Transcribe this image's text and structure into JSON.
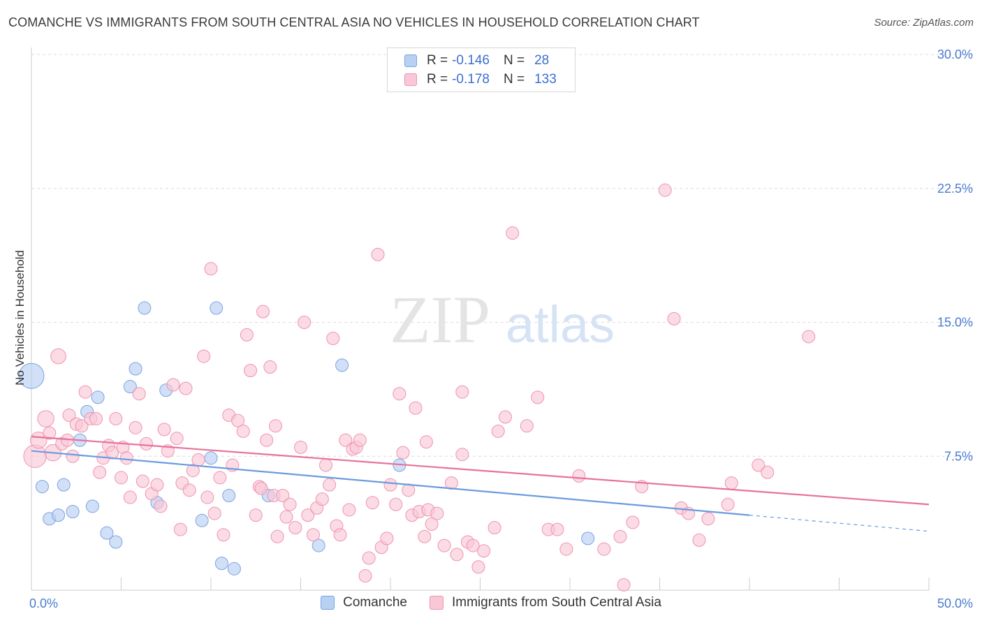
{
  "title": "COMANCHE VS IMMIGRANTS FROM SOUTH CENTRAL ASIA NO VEHICLES IN HOUSEHOLD CORRELATION CHART",
  "source": "Source: ZipAtlas.com",
  "watermark": {
    "zip": "ZIP",
    "atlas": "atlas"
  },
  "legend": {
    "r_label": "R =",
    "n_label": "N =",
    "rows": [
      {
        "r": "-0.146",
        "n": "28",
        "fill": "#b8d0f2",
        "stroke": "#7aa3e0"
      },
      {
        "r": "-0.178",
        "n": "133",
        "fill": "#f9c7d6",
        "stroke": "#ef93b2"
      }
    ]
  },
  "bottom_legend": [
    "Comanche",
    "Immigrants from South Central Asia"
  ],
  "chart_data": {
    "type": "scatter",
    "title": "COMANCHE VS IMMIGRANTS FROM SOUTH CENTRAL ASIA NO VEHICLES IN HOUSEHOLD CORRELATION CHART",
    "xlabel": "",
    "ylabel": "No Vehicles in Household",
    "xlim": [
      0,
      50
    ],
    "ylim": [
      0,
      30
    ],
    "x_tick_labels": [
      "0.0%",
      "50.0%"
    ],
    "y_tick_labels": [
      "7.5%",
      "15.0%",
      "22.5%",
      "30.0%"
    ],
    "y_ticks": [
      7.5,
      15.0,
      22.5,
      30.0
    ],
    "grid": true,
    "legend_position": "top-center",
    "series": [
      {
        "name": "Comanche",
        "color": "#6a9be0",
        "fill": "#b8d0f2",
        "trend": {
          "x0": 0,
          "y0": 7.8,
          "x1": 40,
          "y1": 4.2,
          "dash_to": 50,
          "dash_y": 3.3
        },
        "points": [
          [
            0.0,
            12.0,
            2.0
          ],
          [
            0.6,
            5.8,
            1
          ],
          [
            1.0,
            4.0,
            1
          ],
          [
            1.5,
            4.2,
            1
          ],
          [
            1.8,
            5.9,
            1
          ],
          [
            2.3,
            4.4,
            1
          ],
          [
            2.7,
            8.4,
            1
          ],
          [
            3.1,
            10.0,
            1
          ],
          [
            3.4,
            4.7,
            1
          ],
          [
            3.7,
            10.8,
            1
          ],
          [
            4.2,
            3.2,
            1
          ],
          [
            4.7,
            2.7,
            1
          ],
          [
            5.5,
            11.4,
            1
          ],
          [
            5.8,
            12.4,
            1
          ],
          [
            6.3,
            15.8,
            1
          ],
          [
            7.0,
            4.9,
            1
          ],
          [
            7.5,
            11.2,
            1
          ],
          [
            9.5,
            3.9,
            1
          ],
          [
            10.0,
            7.4,
            1
          ],
          [
            10.3,
            15.8,
            1
          ],
          [
            10.6,
            1.5,
            1
          ],
          [
            11.0,
            5.3,
            1
          ],
          [
            11.3,
            1.2,
            1
          ],
          [
            13.2,
            5.3,
            1
          ],
          [
            16.0,
            2.5,
            1
          ],
          [
            17.3,
            12.6,
            1
          ],
          [
            20.5,
            7.0,
            1
          ],
          [
            31.0,
            2.9,
            1
          ]
        ]
      },
      {
        "name": "Immigrants from South Central Asia",
        "color": "#e8729b",
        "fill": "#f9c7d6",
        "trend": {
          "x0": 0,
          "y0": 8.6,
          "x1": 50,
          "y1": 4.8
        },
        "points": [
          [
            0.2,
            7.5,
            1.8
          ],
          [
            0.4,
            8.4,
            1.3
          ],
          [
            0.8,
            9.6,
            1.3
          ],
          [
            1.0,
            8.8,
            1
          ],
          [
            1.2,
            7.7,
            1.3
          ],
          [
            1.5,
            13.1,
            1.2
          ],
          [
            1.7,
            8.2,
            1
          ],
          [
            2.0,
            8.4,
            1
          ],
          [
            2.1,
            9.8,
            1
          ],
          [
            2.3,
            7.5,
            1
          ],
          [
            2.5,
            9.3,
            1
          ],
          [
            2.8,
            9.2,
            1
          ],
          [
            3.0,
            11.1,
            1
          ],
          [
            3.3,
            9.6,
            1
          ],
          [
            3.6,
            9.6,
            1
          ],
          [
            3.8,
            6.6,
            1
          ],
          [
            4.0,
            7.4,
            1
          ],
          [
            4.3,
            8.1,
            1
          ],
          [
            4.5,
            7.7,
            1
          ],
          [
            4.7,
            9.6,
            1
          ],
          [
            5.0,
            6.3,
            1
          ],
          [
            5.1,
            8.0,
            1
          ],
          [
            5.3,
            7.4,
            1
          ],
          [
            5.5,
            5.2,
            1
          ],
          [
            5.8,
            9.1,
            1
          ],
          [
            6.0,
            11.0,
            1
          ],
          [
            6.2,
            6.1,
            1
          ],
          [
            6.4,
            8.2,
            1
          ],
          [
            6.7,
            5.4,
            1
          ],
          [
            7.0,
            5.9,
            1
          ],
          [
            7.2,
            4.7,
            1
          ],
          [
            7.4,
            9.0,
            1
          ],
          [
            7.6,
            7.8,
            1
          ],
          [
            7.9,
            11.5,
            1
          ],
          [
            8.1,
            8.5,
            1
          ],
          [
            8.4,
            6.0,
            1
          ],
          [
            8.6,
            11.3,
            1
          ],
          [
            8.8,
            5.6,
            1
          ],
          [
            9.0,
            6.7,
            1
          ],
          [
            9.3,
            7.3,
            1
          ],
          [
            9.6,
            13.1,
            1
          ],
          [
            9.8,
            5.2,
            1
          ],
          [
            10.0,
            18.0,
            1
          ],
          [
            10.2,
            4.3,
            1
          ],
          [
            10.5,
            6.3,
            1
          ],
          [
            10.7,
            3.1,
            1
          ],
          [
            11.0,
            9.8,
            1
          ],
          [
            11.2,
            7.0,
            1
          ],
          [
            11.5,
            9.5,
            1
          ],
          [
            11.8,
            8.9,
            1
          ],
          [
            12.0,
            14.3,
            1
          ],
          [
            12.2,
            12.3,
            1
          ],
          [
            12.5,
            4.2,
            1
          ],
          [
            12.7,
            5.8,
            1
          ],
          [
            12.9,
            15.6,
            1
          ],
          [
            13.1,
            8.4,
            1
          ],
          [
            13.3,
            12.5,
            1
          ],
          [
            13.5,
            5.3,
            1
          ],
          [
            13.7,
            3.0,
            1
          ],
          [
            14.0,
            5.3,
            1
          ],
          [
            14.2,
            4.1,
            1
          ],
          [
            14.4,
            4.8,
            1
          ],
          [
            14.7,
            3.5,
            1
          ],
          [
            15.0,
            8.0,
            1
          ],
          [
            15.2,
            15.0,
            1
          ],
          [
            15.4,
            4.2,
            1
          ],
          [
            15.7,
            3.1,
            1
          ],
          [
            15.9,
            4.6,
            1
          ],
          [
            16.2,
            5.1,
            1
          ],
          [
            16.4,
            7.0,
            1
          ],
          [
            16.6,
            5.9,
            1
          ],
          [
            16.8,
            14.1,
            1
          ],
          [
            17.0,
            3.6,
            1
          ],
          [
            17.2,
            3.1,
            1
          ],
          [
            17.5,
            8.4,
            1
          ],
          [
            17.7,
            4.5,
            1
          ],
          [
            17.9,
            7.9,
            1
          ],
          [
            18.1,
            8.0,
            1
          ],
          [
            18.3,
            8.4,
            1
          ],
          [
            18.6,
            0.8,
            1
          ],
          [
            18.8,
            1.8,
            1
          ],
          [
            19.0,
            4.9,
            1
          ],
          [
            19.3,
            18.8,
            1
          ],
          [
            19.5,
            2.4,
            1
          ],
          [
            19.8,
            2.9,
            1
          ],
          [
            20.0,
            5.9,
            1
          ],
          [
            20.3,
            4.8,
            1
          ],
          [
            20.5,
            11.0,
            1
          ],
          [
            20.7,
            7.7,
            1
          ],
          [
            21.0,
            5.6,
            1
          ],
          [
            21.2,
            4.2,
            1
          ],
          [
            21.4,
            10.2,
            1
          ],
          [
            21.6,
            4.4,
            1
          ],
          [
            21.9,
            3.0,
            1
          ],
          [
            22.1,
            4.5,
            1
          ],
          [
            22.3,
            3.7,
            1
          ],
          [
            22.6,
            4.3,
            1
          ],
          [
            23.0,
            2.5,
            1
          ],
          [
            23.4,
            6.0,
            1
          ],
          [
            23.7,
            2.0,
            1
          ],
          [
            24.0,
            11.1,
            1
          ],
          [
            24.3,
            2.7,
            1
          ],
          [
            24.6,
            2.5,
            1
          ],
          [
            24.9,
            1.3,
            1
          ],
          [
            25.2,
            2.2,
            1
          ],
          [
            25.8,
            3.5,
            1
          ],
          [
            26.4,
            9.7,
            1
          ],
          [
            26.8,
            20.0,
            1
          ],
          [
            27.6,
            9.2,
            1
          ],
          [
            28.2,
            10.8,
            1
          ],
          [
            28.8,
            3.4,
            1
          ],
          [
            29.3,
            3.4,
            1
          ],
          [
            29.8,
            2.3,
            1
          ],
          [
            30.5,
            6.4,
            1
          ],
          [
            31.9,
            2.3,
            1
          ],
          [
            32.8,
            3.0,
            1
          ],
          [
            33.5,
            3.8,
            1
          ],
          [
            34.0,
            5.8,
            1
          ],
          [
            35.3,
            22.4,
            1
          ],
          [
            35.8,
            15.2,
            1
          ],
          [
            36.2,
            4.6,
            1
          ],
          [
            36.6,
            4.3,
            1
          ],
          [
            37.2,
            2.8,
            1
          ],
          [
            37.7,
            4.0,
            1
          ],
          [
            38.8,
            4.8,
            1
          ],
          [
            39.0,
            6.0,
            1
          ],
          [
            40.5,
            7.0,
            1
          ],
          [
            41.0,
            6.6,
            1
          ],
          [
            43.3,
            14.2,
            1
          ],
          [
            24.0,
            7.6,
            1
          ],
          [
            22.0,
            8.3,
            1
          ],
          [
            8.3,
            3.4,
            1
          ],
          [
            12.8,
            5.7,
            1
          ],
          [
            33.0,
            0.3,
            1
          ],
          [
            26.0,
            8.9,
            1
          ],
          [
            13.6,
            9.2,
            1
          ]
        ]
      }
    ]
  }
}
